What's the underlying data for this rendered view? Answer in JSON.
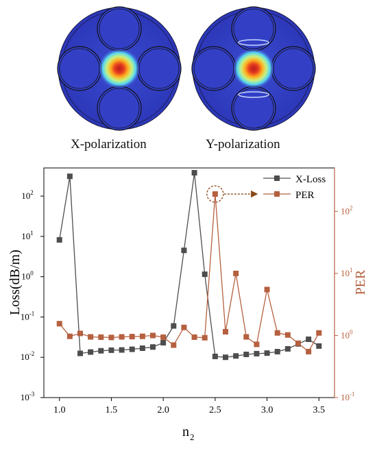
{
  "mode_panels": {
    "x_label": "X-polarization",
    "y_label": "Y-polarization"
  },
  "chart_data": {
    "type": "line",
    "xlabel": "n",
    "xlabel_sub": "2",
    "ylabel_left": "Loss(dB/m)",
    "ylabel_right": "PER",
    "xlim": [
      0.85,
      3.65
    ],
    "ylim_left": [
      0.001,
      500
    ],
    "ylim_right": [
      0.1,
      500
    ],
    "y_scale": "log",
    "x_ticks": [
      "1.0",
      "1.5",
      "2.0",
      "2.5",
      "3.0",
      "3.5"
    ],
    "x_tick_values": [
      1.0,
      1.5,
      2.0,
      2.5,
      3.0,
      3.5
    ],
    "left_ticks": [
      {
        "v": 0.001,
        "base": "10",
        "exp": "-3"
      },
      {
        "v": 0.01,
        "base": "10",
        "exp": "-2"
      },
      {
        "v": 0.1,
        "base": "10",
        "exp": "-1"
      },
      {
        "v": 1,
        "base": "10",
        "exp": "0"
      },
      {
        "v": 10,
        "base": "10",
        "exp": "1"
      },
      {
        "v": 100,
        "base": "10",
        "exp": "2"
      }
    ],
    "right_ticks": [
      {
        "v": 0.1,
        "base": "10",
        "exp": "-1"
      },
      {
        "v": 1,
        "base": "10",
        "exp": "0"
      },
      {
        "v": 10,
        "base": "10",
        "exp": "1"
      },
      {
        "v": 100,
        "base": "10",
        "exp": "2"
      }
    ],
    "legend_position": "top-right",
    "x": [
      1.0,
      1.1,
      1.2,
      1.3,
      1.4,
      1.5,
      1.6,
      1.7,
      1.8,
      1.9,
      2.0,
      2.1,
      2.2,
      2.3,
      2.4,
      2.5,
      2.6,
      2.7,
      2.8,
      2.9,
      3.0,
      3.1,
      3.2,
      3.3,
      3.4,
      3.5
    ],
    "series": [
      {
        "name": "X-Loss",
        "axis": "left",
        "color": "#4d4d4d",
        "values": [
          8.2,
          310,
          0.0125,
          0.0135,
          0.0145,
          0.015,
          0.0152,
          0.0158,
          0.0168,
          0.018,
          0.023,
          0.06,
          4.5,
          380,
          1.15,
          0.0105,
          0.01,
          0.0108,
          0.0118,
          0.0123,
          0.0127,
          0.0138,
          0.0162,
          0.0215,
          0.028,
          0.019
        ]
      },
      {
        "name": "PER",
        "axis": "right",
        "color": "#b5603f",
        "values": [
          1.55,
          0.97,
          1.08,
          0.95,
          0.94,
          0.93,
          0.95,
          0.96,
          0.97,
          1.0,
          0.94,
          0.7,
          1.35,
          0.94,
          0.92,
          190,
          1.15,
          10,
          0.95,
          0.72,
          5.5,
          1.1,
          1.02,
          0.75,
          0.55,
          1.1
        ]
      }
    ],
    "highlight": {
      "series": "PER",
      "x": 2.5
    }
  }
}
